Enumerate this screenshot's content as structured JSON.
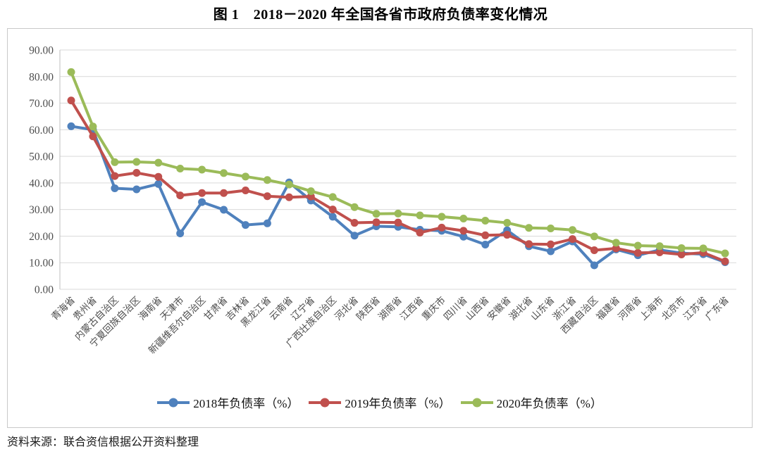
{
  "title": "图 1　2018－2020 年全国各省市政府负债率变化情况",
  "source_note": "资料来源：联合资信根据公开资料整理",
  "colors": {
    "series_2018": "#4F81BD",
    "series_2019": "#C0504D",
    "series_2020": "#9BBB59",
    "gridline": "#D9D9D9",
    "axis_line": "#BFBFBF",
    "tick_text": "#4D4D4D",
    "frame_border": "#C9C9C9"
  },
  "chart_data": {
    "type": "line",
    "title": "图 1　2018－2020 年全国各省市政府负债率变化情况",
    "grid": "horizontal",
    "legend_position": "bottom",
    "ylim": [
      0,
      90
    ],
    "yticks": [
      "0.00",
      "10.00",
      "20.00",
      "30.00",
      "40.00",
      "50.00",
      "60.00",
      "70.00",
      "80.00",
      "90.00"
    ],
    "categories": [
      "青海省",
      "贵州省",
      "内蒙古自治区",
      "宁夏回族自治区",
      "海南省",
      "天津市",
      "新疆维吾尔自治区",
      "甘肃省",
      "吉林省",
      "黑龙江省",
      "云南省",
      "辽宁省",
      "广西壮族自治区",
      "河北省",
      "陕西省",
      "湖南省",
      "江西省",
      "重庆市",
      "四川省",
      "山西省",
      "安徽省",
      "湖北省",
      "山东省",
      "浙江省",
      "西藏自治区",
      "福建省",
      "河南省",
      "上海市",
      "北京市",
      "江苏省",
      "广东省"
    ],
    "series": [
      {
        "name": "2018年负债率（%）",
        "color": "#4F81BD",
        "values": [
          61.3,
          60.0,
          38.0,
          37.6,
          39.6,
          21.0,
          32.8,
          29.9,
          24.2,
          24.8,
          40.2,
          33.4,
          27.3,
          20.2,
          23.7,
          23.5,
          22.4,
          22.0,
          19.8,
          16.8,
          22.2,
          16.2,
          14.3,
          18.0,
          9.0,
          15.0,
          12.8,
          14.8,
          13.6,
          13.2,
          10.2
        ]
      },
      {
        "name": "2019年负债率（%）",
        "color": "#C0504D",
        "values": [
          71.0,
          57.5,
          42.6,
          43.8,
          42.3,
          35.3,
          36.2,
          36.2,
          37.2,
          35.0,
          34.6,
          34.9,
          30.0,
          25.0,
          25.2,
          25.1,
          21.3,
          23.2,
          22.0,
          20.3,
          20.5,
          17.0,
          16.9,
          18.9,
          14.7,
          15.4,
          13.7,
          13.9,
          13.1,
          13.8,
          10.5
        ]
      },
      {
        "name": "2020年负债率（%）",
        "color": "#9BBB59",
        "values": [
          81.7,
          61.2,
          47.8,
          47.9,
          47.6,
          45.4,
          45.0,
          43.7,
          42.4,
          41.1,
          39.4,
          36.9,
          34.7,
          30.9,
          28.4,
          28.5,
          27.8,
          27.3,
          26.6,
          25.8,
          25.0,
          23.1,
          22.9,
          22.3,
          19.9,
          17.5,
          16.4,
          16.2,
          15.5,
          15.4,
          13.5
        ]
      }
    ]
  }
}
